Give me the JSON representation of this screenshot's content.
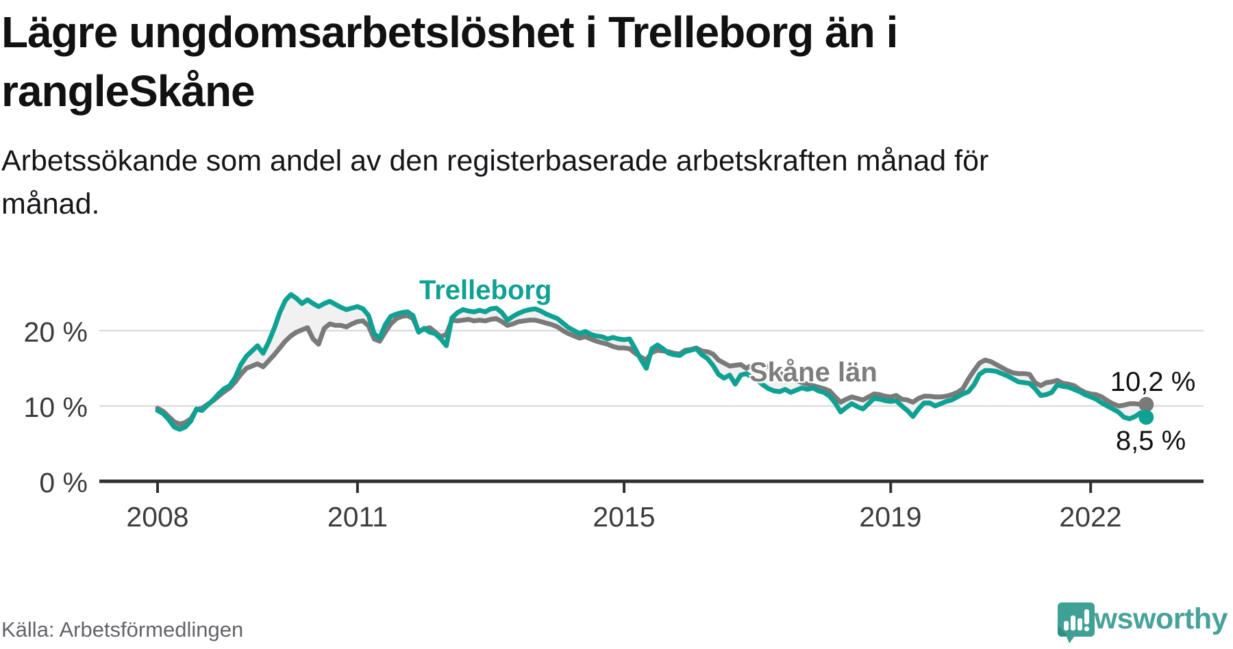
{
  "header": {
    "title_lines": [
      "Lägre ungdomsarbetslöshet i Trelleborg än i",
      "Skåne"
    ],
    "subtitle_lines": [
      "Arbetssökande som andel av den registerbaserade arbetskraften månad för",
      "månad."
    ]
  },
  "footer": {
    "source": "Källa: Arbetsförmedlingen",
    "brand": "Newsworthy",
    "brand_color": "#46a29a"
  },
  "chart_data": {
    "type": "line",
    "x_start": "2008-01",
    "x_end": "2022-11",
    "x_step": "monthly",
    "grid": true,
    "legend_position": "inline-labels",
    "ylim": [
      0,
      32
    ],
    "band_fill": "#f1f1f1",
    "axis_color": "#2f2f2f",
    "grid_color": "#dcdcdc",
    "y_ticks": [
      {
        "value": 0,
        "label": "0 %"
      },
      {
        "value": 10,
        "label": "10 %"
      },
      {
        "value": 20,
        "label": "20 %"
      }
    ],
    "x_ticks": [
      {
        "year": 2008,
        "label": "2008"
      },
      {
        "year": 2011,
        "label": "2011"
      },
      {
        "year": 2015,
        "label": "2015"
      },
      {
        "year": 2019,
        "label": "2019"
      },
      {
        "year": 2022,
        "label": "2022"
      }
    ],
    "series": [
      {
        "name": "Trelleborg",
        "color": "#0fa193",
        "end_label": "8,5 %",
        "values": [
          9.4,
          9.0,
          8.2,
          7.2,
          6.9,
          7.2,
          8.0,
          9.6,
          9.4,
          10.1,
          10.8,
          11.6,
          12.3,
          12.7,
          13.8,
          15.5,
          16.6,
          17.3,
          18.0,
          17.0,
          18.5,
          20.3,
          22.4,
          24.0,
          24.8,
          24.3,
          23.6,
          24.1,
          23.6,
          23.2,
          23.6,
          23.9,
          23.5,
          23.1,
          22.8,
          23.0,
          23.2,
          22.9,
          22.0,
          19.6,
          19.0,
          20.8,
          21.9,
          22.2,
          22.4,
          22.5,
          22.0,
          19.8,
          20.3,
          19.8,
          19.6,
          18.9,
          18.0,
          21.7,
          22.4,
          22.8,
          22.6,
          22.5,
          22.7,
          22.5,
          22.9,
          23.0,
          22.4,
          21.4,
          21.9,
          22.3,
          22.6,
          22.8,
          22.9,
          22.6,
          22.2,
          21.9,
          21.6,
          21.0,
          20.4,
          20.0,
          19.6,
          19.9,
          19.5,
          19.3,
          19.2,
          18.9,
          19.1,
          18.9,
          18.8,
          18.9,
          17.6,
          16.2,
          15.0,
          17.6,
          18.1,
          17.6,
          17.0,
          16.8,
          16.7,
          17.2,
          17.4,
          17.6,
          16.8,
          16.3,
          15.4,
          14.2,
          13.7,
          14.1,
          12.9,
          14.1,
          14.3,
          13.8,
          13.4,
          12.8,
          12.3,
          12.0,
          11.9,
          12.2,
          11.8,
          12.1,
          12.4,
          12.2,
          12.4,
          12.0,
          11.8,
          11.3,
          10.4,
          9.2,
          9.8,
          10.3,
          9.9,
          9.6,
          10.3,
          11.0,
          10.9,
          10.7,
          10.6,
          10.7,
          10.0,
          9.4,
          8.6,
          9.6,
          10.4,
          10.4,
          10.0,
          10.3,
          10.6,
          10.8,
          11.2,
          11.6,
          11.9,
          12.8,
          14.2,
          14.7,
          14.7,
          14.6,
          14.3,
          14.0,
          13.6,
          13.2,
          13.1,
          13.0,
          12.3,
          11.4,
          11.5,
          11.8,
          12.8,
          12.6,
          12.5,
          12.2,
          11.9,
          11.5,
          11.2,
          10.9,
          10.4,
          10.0,
          9.6,
          9.2,
          8.5,
          8.3,
          8.6,
          9.1,
          8.5
        ]
      },
      {
        "name": "Skåne län",
        "color": "#7a7a7a",
        "end_label": "10,2 %",
        "values": [
          9.7,
          9.3,
          8.6,
          7.9,
          7.6,
          7.8,
          8.3,
          9.5,
          9.7,
          10.2,
          10.7,
          11.3,
          11.9,
          12.4,
          13.2,
          14.2,
          15.0,
          15.3,
          15.6,
          15.2,
          16.0,
          16.8,
          17.7,
          18.6,
          19.3,
          19.8,
          20.1,
          20.4,
          18.9,
          18.2,
          20.3,
          20.9,
          20.7,
          20.7,
          20.5,
          20.9,
          21.2,
          21.3,
          20.6,
          18.9,
          18.6,
          19.8,
          20.9,
          21.6,
          21.9,
          22.0,
          21.6,
          19.9,
          20.2,
          20.4,
          19.8,
          19.2,
          19.5,
          21.4,
          21.3,
          21.4,
          21.5,
          21.3,
          21.4,
          21.3,
          21.5,
          21.6,
          21.2,
          20.7,
          20.9,
          21.2,
          21.3,
          21.4,
          21.4,
          21.2,
          21.0,
          20.8,
          20.5,
          20.0,
          19.6,
          19.3,
          19.0,
          19.2,
          18.9,
          18.6,
          18.4,
          18.2,
          17.9,
          17.7,
          17.7,
          17.6,
          17.0,
          16.5,
          16.1,
          17.1,
          17.4,
          17.3,
          17.2,
          17.0,
          16.9,
          17.4,
          17.5,
          17.7,
          17.3,
          17.2,
          16.9,
          16.1,
          15.7,
          15.3,
          15.4,
          15.5,
          15.0,
          15.4,
          15.5,
          15.5,
          15.2,
          14.8,
          14.4,
          14.0,
          13.7,
          13.4,
          13.1,
          12.9,
          12.7,
          12.5,
          12.3,
          12.0,
          11.2,
          10.5,
          10.9,
          11.2,
          11.0,
          10.8,
          11.2,
          11.6,
          11.5,
          11.3,
          11.2,
          11.4,
          10.9,
          10.8,
          10.5,
          11.0,
          11.3,
          11.3,
          11.2,
          11.2,
          11.3,
          11.5,
          11.8,
          12.3,
          13.6,
          14.7,
          15.7,
          16.1,
          15.9,
          15.5,
          15.1,
          14.7,
          14.4,
          14.3,
          14.3,
          14.2,
          13.1,
          12.7,
          13.1,
          13.2,
          13.4,
          13.0,
          12.9,
          12.7,
          12.2,
          11.8,
          11.6,
          11.5,
          11.2,
          10.7,
          10.3,
          10.0,
          10.1,
          10.3,
          10.3,
          10.2,
          10.2
        ]
      }
    ]
  }
}
